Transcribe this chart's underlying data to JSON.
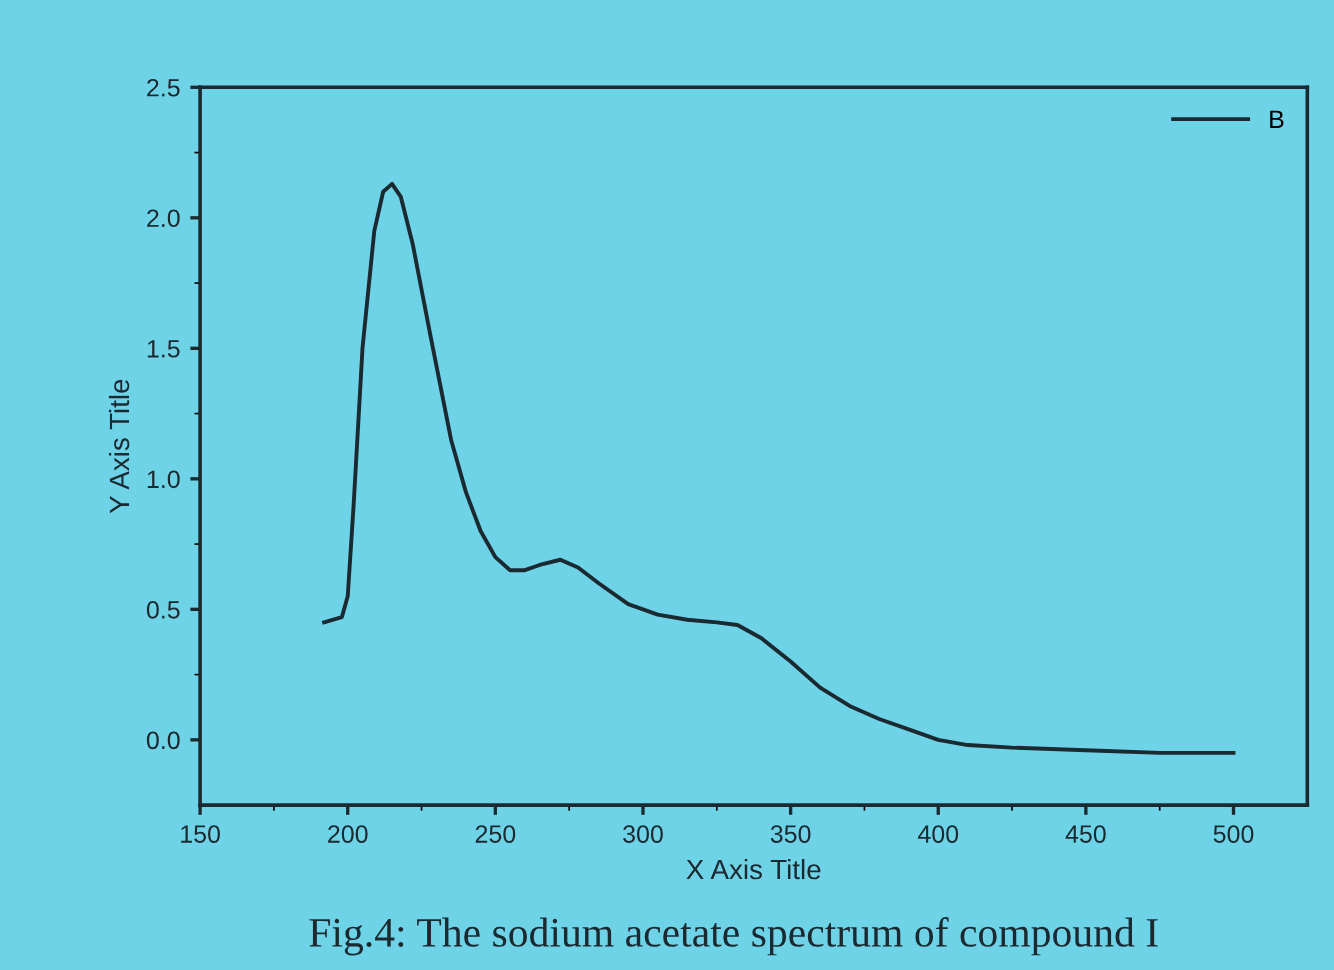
{
  "chart_data": {
    "type": "line",
    "xlabel": "X Axis Title",
    "ylabel": "Y Axis Title",
    "annotations": [
      "Fig.4: The sodium acetate spectrum of compound I"
    ],
    "x": [
      192,
      198,
      200,
      202,
      205,
      209,
      212,
      215,
      218,
      222,
      228,
      235,
      240,
      245,
      250,
      255,
      260,
      265,
      272,
      278,
      285,
      295,
      305,
      315,
      325,
      332,
      340,
      350,
      360,
      370,
      380,
      390,
      400,
      410,
      425,
      450,
      475,
      500
    ],
    "series": [
      {
        "name": "B",
        "color": "#1a2a30",
        "values": [
          0.45,
          0.47,
          0.55,
          0.9,
          1.5,
          1.95,
          2.1,
          2.13,
          2.08,
          1.9,
          1.55,
          1.15,
          0.95,
          0.8,
          0.7,
          0.65,
          0.65,
          0.67,
          0.69,
          0.66,
          0.6,
          0.52,
          0.48,
          0.46,
          0.45,
          0.44,
          0.39,
          0.3,
          0.2,
          0.13,
          0.08,
          0.04,
          0.0,
          -0.02,
          -0.03,
          -0.04,
          -0.05,
          -0.05
        ]
      }
    ],
    "xlim": [
      150,
      525
    ],
    "xticks": [
      150,
      200,
      250,
      300,
      350,
      400,
      450,
      500
    ],
    "ylim": [
      -0.25,
      2.5
    ],
    "yticks": [
      {
        "value": 0,
        "label": "0.0"
      },
      0.5,
      {
        "value": 1,
        "label": "1.0"
      },
      1.5,
      {
        "value": 2,
        "label": "2.0"
      },
      2.5
    ],
    "grid": false,
    "legend": "top right",
    "marker": "none",
    "line_style": "solid"
  }
}
